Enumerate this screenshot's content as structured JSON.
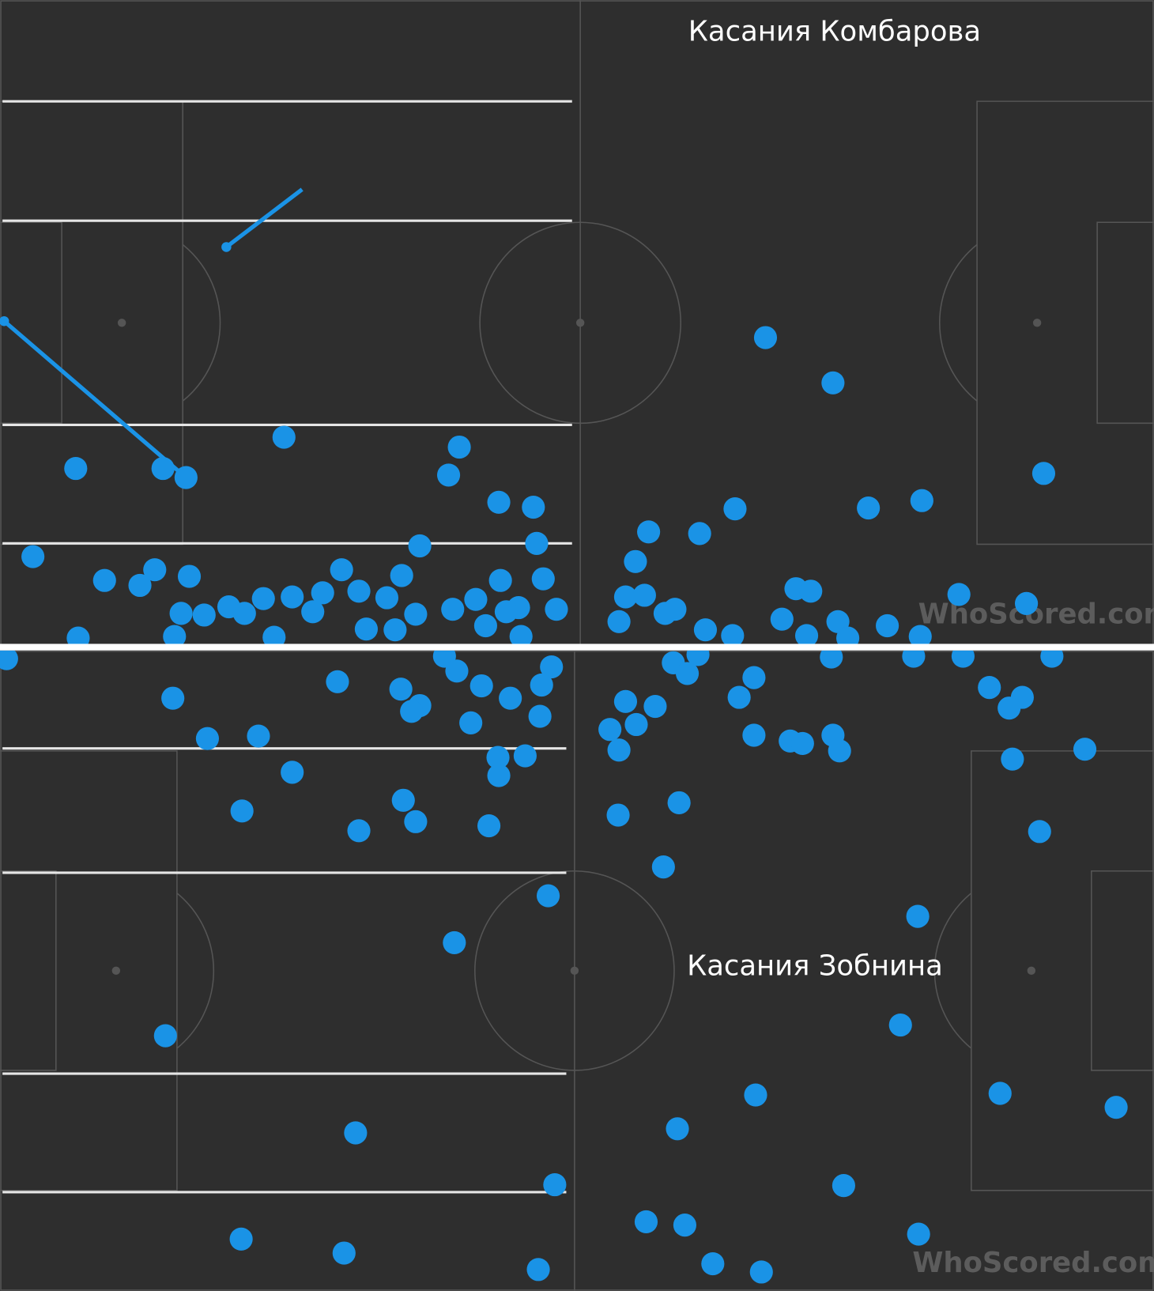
{
  "chart_data": [
    {
      "type": "scatter",
      "title": "Касания Комбарова",
      "watermark": "WhoScored.com",
      "color": "#1a93e6",
      "xlim": [
        0,
        140.2
      ],
      "ylim": [
        78.4,
        0
      ],
      "x": [
        93.0,
        101.2,
        126.8,
        112.0,
        105.5,
        89.3,
        85.0,
        78.8,
        77.2,
        34.5,
        55.8,
        54.5,
        9.2,
        19.8,
        22.6,
        60.6,
        64.8,
        65.2,
        51.0,
        4.0,
        12.7,
        17.0,
        18.8,
        23.0,
        41.5,
        48.8,
        60.8,
        66.0,
        96.7,
        98.5,
        116.5,
        124.7,
        76.0,
        78.3,
        27.8,
        32.0,
        35.5,
        39.2,
        43.6,
        47.0,
        55.0,
        57.8,
        63.0,
        67.6,
        22.0,
        24.8,
        29.7,
        38.0,
        50.5,
        61.5,
        75.2,
        80.8,
        82.0,
        95.0,
        101.8,
        107.8,
        9.5,
        21.2,
        33.3,
        44.5,
        48.0,
        59.0,
        85.7,
        89.0,
        111.8,
        103.0,
        98.0,
        63.3
      ],
      "y": [
        41.0,
        46.5,
        57.5,
        60.8,
        61.7,
        61.8,
        64.8,
        64.6,
        68.2,
        53.1,
        54.3,
        57.7,
        56.9,
        56.9,
        58.0,
        61.0,
        61.6,
        66.0,
        66.3,
        67.6,
        70.5,
        71.1,
        69.2,
        70.0,
        69.2,
        69.9,
        70.5,
        70.3,
        71.5,
        71.8,
        72.2,
        73.3,
        72.5,
        72.3,
        73.7,
        72.7,
        72.5,
        72.0,
        71.8,
        72.6,
        74.0,
        72.8,
        73.8,
        74.0,
        74.5,
        74.7,
        74.5,
        74.3,
        74.6,
        74.3,
        75.5,
        74.5,
        74.0,
        75.2,
        75.5,
        76.0,
        77.5,
        77.3,
        77.4,
        76.4,
        76.5,
        76.0,
        76.5,
        77.2,
        77.3,
        77.5,
        77.2,
        77.3
      ],
      "passes": [
        {
          "x": [
            27.5,
            36.7
          ],
          "y": [
            30.0,
            23.0
          ]
        },
        {
          "x": [
            0.5,
            22.6
          ],
          "y": [
            39.0,
            58.0
          ]
        }
      ]
    },
    {
      "type": "scatter",
      "title": "Касания Зобнина",
      "watermark": "WhoScored.com",
      "color": "#1a93e6",
      "xlim": [
        0,
        140.2
      ],
      "ylim": [
        77.8,
        0
      ],
      "x": [
        0.8,
        54.0,
        67.0,
        81.8,
        84.8,
        101.0,
        111.0,
        117.0,
        127.8,
        41.0,
        48.7,
        51.0,
        50.0,
        21.0,
        55.5,
        58.5,
        62.0,
        65.8,
        65.6,
        57.2,
        76.0,
        79.6,
        83.5,
        91.6,
        89.8,
        120.2,
        124.2,
        122.6,
        74.1,
        77.3,
        75.2,
        91.6,
        96.0,
        97.5,
        101.2,
        102.0,
        131.8,
        123.0,
        25.2,
        31.4,
        35.5,
        60.5,
        63.8,
        60.6,
        49.0,
        50.5,
        29.4,
        43.6,
        59.4,
        75.1,
        82.5,
        126.3,
        80.6,
        66.6,
        55.2,
        111.5,
        20.1,
        109.4,
        91.8,
        121.5,
        135.6,
        82.3,
        43.2,
        67.4,
        102.5,
        78.5,
        83.2,
        29.3,
        41.8,
        111.6,
        86.6,
        92.5,
        65.4
      ],
      "y": [
        1.0,
        0.7,
        2.0,
        1.5,
        0.5,
        0.8,
        0.7,
        0.7,
        0.7,
        3.8,
        4.7,
        6.7,
        7.4,
        5.8,
        2.5,
        4.3,
        5.8,
        4.2,
        8.0,
        8.8,
        6.2,
        6.8,
        2.8,
        3.3,
        5.7,
        4.5,
        5.7,
        7.0,
        9.6,
        9.0,
        12.1,
        10.3,
        11.0,
        11.3,
        10.3,
        12.2,
        12.0,
        13.2,
        10.7,
        10.4,
        14.8,
        13.0,
        12.8,
        15.2,
        18.2,
        20.8,
        19.5,
        21.9,
        21.3,
        20.0,
        18.5,
        22.0,
        26.3,
        29.8,
        35.5,
        32.3,
        46.8,
        45.5,
        54.0,
        53.8,
        55.5,
        58.1,
        58.6,
        64.9,
        65.0,
        69.4,
        69.8,
        71.5,
        73.2,
        70.9,
        74.5,
        75.5,
        75.2
      ]
    }
  ]
}
